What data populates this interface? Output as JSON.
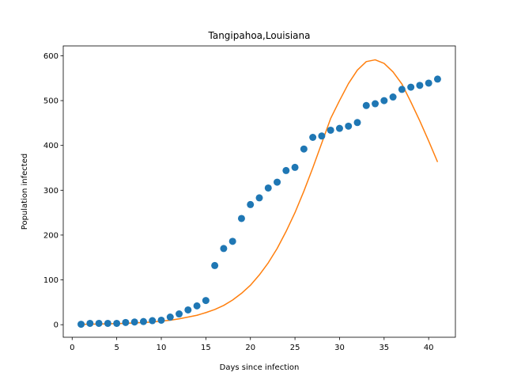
{
  "chart_data": {
    "type": "scatter",
    "title": "Tangipahoa,Louisiana",
    "xlabel": "Days since infection",
    "ylabel": "Population infected",
    "xlim": [
      -1,
      43
    ],
    "ylim": [
      -28,
      622
    ],
    "xticks": [
      0,
      5,
      10,
      15,
      20,
      25,
      30,
      35,
      40
    ],
    "yticks": [
      0,
      100,
      200,
      300,
      400,
      500,
      600
    ],
    "grid": false,
    "colors": {
      "observed": "#1f77b4",
      "model": "#ff7f0e"
    },
    "series": [
      {
        "kind": "scatter",
        "x": [
          1,
          2,
          3,
          4,
          5,
          6,
          7,
          8,
          9,
          10,
          11,
          12,
          13,
          14,
          15,
          16,
          17,
          18,
          19,
          20,
          21,
          22,
          23,
          24,
          25,
          26,
          27,
          28,
          29,
          30,
          31,
          32,
          33,
          34,
          35,
          36,
          37,
          38,
          39,
          40,
          41
        ],
        "values": [
          1,
          3,
          3,
          3,
          3,
          5,
          6,
          7,
          9,
          10,
          17,
          24,
          33,
          42,
          54,
          132,
          170,
          186,
          237,
          268,
          283,
          305,
          318,
          344,
          351,
          392,
          418,
          421,
          434,
          438,
          443,
          451,
          489,
          493,
          500,
          508,
          525,
          530,
          534,
          539,
          548
        ]
      },
      {
        "kind": "line",
        "x": [
          1,
          2,
          3,
          4,
          5,
          6,
          7,
          8,
          9,
          10,
          11,
          12,
          13,
          14,
          15,
          16,
          17,
          18,
          19,
          20,
          21,
          22,
          23,
          24,
          25,
          26,
          27,
          28,
          29,
          30,
          31,
          32,
          33,
          34,
          35,
          36,
          37,
          38,
          39,
          40,
          41
        ],
        "values": [
          1,
          1,
          1.5,
          2,
          2.5,
          3,
          4,
          5,
          6,
          8,
          10,
          13,
          17,
          21,
          27,
          34,
          43,
          55,
          70,
          88,
          111,
          138,
          170,
          208,
          250,
          298,
          350,
          405,
          460,
          500,
          538,
          568,
          587,
          591,
          583,
          564,
          537,
          497,
          455,
          410,
          363
        ]
      }
    ]
  }
}
